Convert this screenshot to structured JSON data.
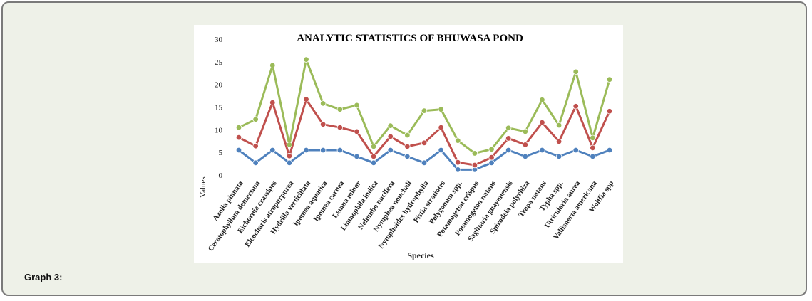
{
  "caption": "Graph 3:",
  "chart_data": {
    "type": "line",
    "title": "ANALYTIC STATISTICS OF BHUWASA POND",
    "xlabel": "Species",
    "ylabel": "Values",
    "ylim": [
      0,
      30
    ],
    "yticks": [
      0,
      5,
      10,
      15,
      20,
      25,
      30
    ],
    "grid": false,
    "categories": [
      "Azolla pinnata",
      "Ceratophyllum demersum",
      "Eichornia crassipes",
      "Eleocharis atropurpurea",
      "Hydrilla verticillata",
      "Ipomea aquatica",
      "Ipomea carnea",
      "Lemna minor",
      "Limnophila indica",
      "Nelumbo nucifera",
      "Nymphea nouchali",
      "Nymphoides hydrophylla",
      "Pistia stratiotes",
      "Polygonum spp.",
      "Potamogeton crispus",
      "Potamogeton natans",
      "Sagittaria guayanensis",
      "Spirodela polyrhiza",
      "Trapa natans",
      "Typha spp.",
      "Utricularia aurea",
      "Vallisneria americana",
      "Wolffia spp"
    ],
    "series": [
      {
        "color": "#4f81bd",
        "values": [
          5.5,
          2.7,
          5.5,
          2.7,
          5.5,
          5.5,
          5.5,
          4.1,
          2.7,
          5.5,
          4.1,
          2.7,
          5.5,
          1.2,
          1.2,
          2.7,
          5.5,
          4.1,
          5.5,
          4.1,
          5.5,
          4.1,
          5.5
        ]
      },
      {
        "color": "#c0504d",
        "values": [
          8.3,
          6.4,
          16.0,
          4.2,
          16.7,
          11.2,
          10.5,
          9.6,
          4.1,
          8.5,
          6.3,
          7.1,
          10.5,
          2.8,
          2.2,
          3.9,
          8.1,
          6.7,
          11.6,
          7.4,
          15.2,
          6.0,
          14.1
        ]
      },
      {
        "color": "#9bbb59",
        "values": [
          10.5,
          12.3,
          24.2,
          6.7,
          25.5,
          15.8,
          14.5,
          15.4,
          6.3,
          10.9,
          8.8,
          14.2,
          14.5,
          7.6,
          4.8,
          5.7,
          10.4,
          9.6,
          16.6,
          11.0,
          22.8,
          8.2,
          21.1
        ]
      }
    ]
  }
}
